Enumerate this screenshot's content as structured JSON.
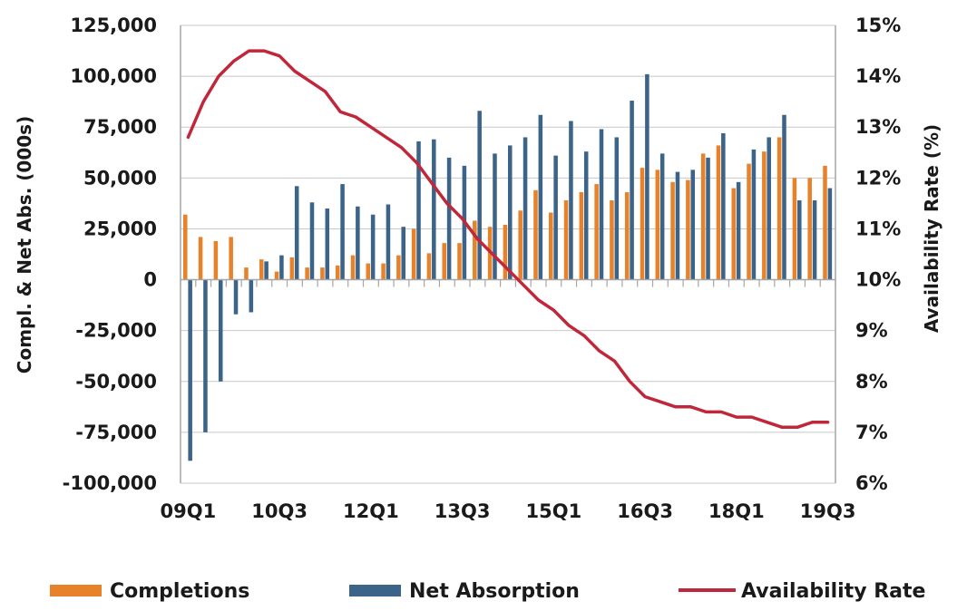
{
  "chart_data": {
    "type": "bar",
    "categories": [
      "09Q1",
      "09Q2",
      "09Q3",
      "09Q4",
      "10Q1",
      "10Q2",
      "10Q3",
      "10Q4",
      "11Q1",
      "11Q2",
      "11Q3",
      "11Q4",
      "12Q1",
      "12Q2",
      "12Q3",
      "12Q4",
      "13Q1",
      "13Q2",
      "13Q3",
      "13Q4",
      "14Q1",
      "14Q2",
      "14Q3",
      "14Q4",
      "15Q1",
      "15Q2",
      "15Q3",
      "15Q4",
      "16Q1",
      "16Q2",
      "16Q3",
      "16Q4",
      "17Q1",
      "17Q2",
      "17Q3",
      "17Q4",
      "18Q1",
      "18Q2",
      "18Q3",
      "18Q4",
      "19Q1",
      "19Q2",
      "19Q3"
    ],
    "x_tick_labels": [
      "09Q1",
      "10Q3",
      "12Q1",
      "13Q3",
      "15Q1",
      "16Q3",
      "18Q1",
      "19Q3"
    ],
    "x_tick_every": 6,
    "series": [
      {
        "name": "Completions",
        "kind": "bar",
        "axis": "left",
        "color": "#e8822a",
        "values": [
          32000,
          21000,
          19000,
          21000,
          6000,
          10000,
          4000,
          11000,
          6000,
          6000,
          7000,
          12000,
          8000,
          8000,
          12000,
          25000,
          13000,
          18000,
          18000,
          29000,
          26000,
          27000,
          34000,
          44000,
          33000,
          39000,
          43000,
          47000,
          39000,
          43000,
          55000,
          54000,
          48000,
          49000,
          62000,
          66000,
          45000,
          57000,
          63000,
          70000,
          50000,
          50000,
          56000
        ]
      },
      {
        "name": "Net Absorption",
        "kind": "bar",
        "axis": "left",
        "color": "#3c6489",
        "values": [
          -89000,
          -75000,
          -50000,
          -17000,
          -16000,
          9000,
          12000,
          46000,
          38000,
          35000,
          47000,
          36000,
          32000,
          37000,
          26000,
          68000,
          69000,
          60000,
          56000,
          83000,
          62000,
          66000,
          70000,
          81000,
          61000,
          78000,
          63000,
          74000,
          70000,
          88000,
          101000,
          62000,
          53000,
          54000,
          60000,
          72000,
          48000,
          64000,
          70000,
          81000,
          39000,
          39000,
          45000
        ]
      },
      {
        "name": "Availability Rate",
        "kind": "line",
        "axis": "right",
        "color": "#c0273a",
        "values": [
          12.8,
          13.5,
          14.0,
          14.3,
          14.5,
          14.5,
          14.4,
          14.1,
          13.9,
          13.7,
          13.3,
          13.2,
          13.0,
          12.8,
          12.6,
          12.3,
          11.9,
          11.5,
          11.2,
          10.8,
          10.5,
          10.2,
          9.9,
          9.6,
          9.4,
          9.1,
          8.9,
          8.6,
          8.4,
          8.0,
          7.7,
          7.6,
          7.5,
          7.5,
          7.4,
          7.4,
          7.3,
          7.3,
          7.2,
          7.1,
          7.1,
          7.2,
          7.2
        ]
      }
    ],
    "ylim_left": [
      -100000,
      125000
    ],
    "yticks_left": [
      "125,000",
      "100,000",
      "75,000",
      "50,000",
      "25,000",
      "0",
      "-25,000",
      "-50,000",
      "-75,000",
      "-100,000"
    ],
    "ylim_right": [
      6,
      15
    ],
    "yticks_right": [
      "15%",
      "14%",
      "13%",
      "12%",
      "11%",
      "10%",
      "9%",
      "8%",
      "7%",
      "6%"
    ],
    "ylabel_left": "Compl. & Net Abs. (000s)",
    "ylabel_right": "Availability Rate (%)",
    "xlabel": "",
    "title": "",
    "grid": "horizontal",
    "legend_position": "bottom"
  },
  "legend": [
    {
      "label": "Completions",
      "color": "#e8822a",
      "marker": "bar"
    },
    {
      "label": "Net Absorption",
      "color": "#3c6489",
      "marker": "bar"
    },
    {
      "label": "Availability Rate",
      "color": "#c0273a",
      "marker": "line"
    }
  ]
}
